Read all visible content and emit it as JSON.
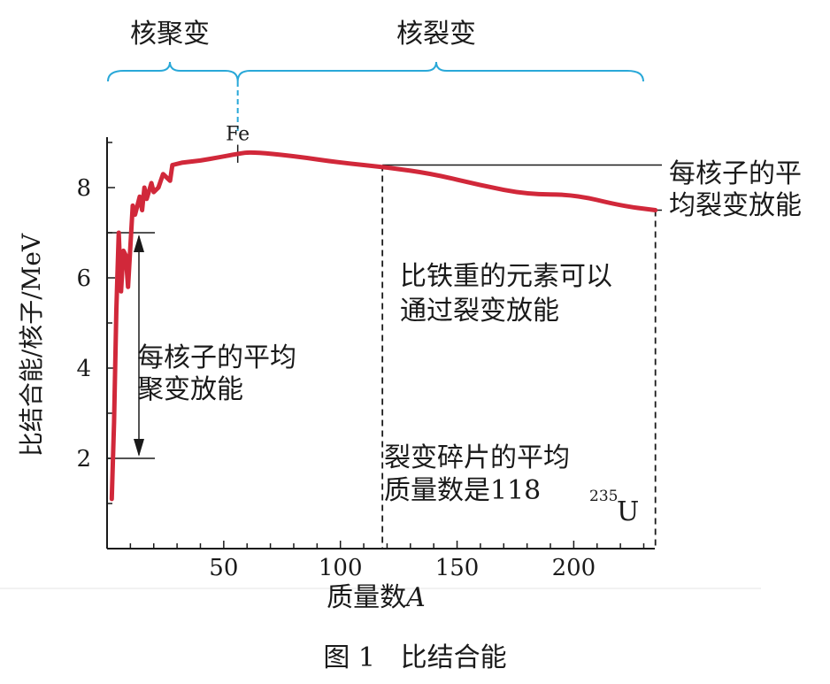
{
  "regions": {
    "fusion_label": "核聚变",
    "fission_label": "核裂变",
    "fe_label": "Fe"
  },
  "annotations": {
    "fission_yield_line1": "每核子的平",
    "fission_yield_line2": "均裂变放能",
    "heavier_than_iron_line1": "比铁重的元素可以",
    "heavier_than_iron_line2": "通过裂变放能",
    "fusion_yield_line1": "每核子的平均",
    "fusion_yield_line2": "聚变放能",
    "fragment_mass_line1": "裂变碎片的平均",
    "fragment_mass_line2": "质量数是118",
    "u_superscript": "235",
    "u_symbol": "U"
  },
  "caption": "图 1   比结合能",
  "colors": {
    "curve": "#d1283a",
    "bracket": "#29a8d8",
    "axis": "#1a1a1a"
  },
  "chart_data": {
    "type": "line",
    "title": "",
    "xlabel_text": "质量数",
    "xlabel_var": "A",
    "ylabel": "比结合能/核子/MeV",
    "xlim": [
      0,
      238
    ],
    "ylim": [
      0,
      9.2
    ],
    "xticks": [
      50,
      100,
      150,
      200
    ],
    "yticks": [
      2,
      4,
      6,
      8
    ],
    "x": [
      2,
      3,
      4,
      5,
      6,
      7,
      8,
      9,
      11,
      12,
      14,
      15,
      16,
      17,
      19,
      20,
      22,
      24,
      27,
      28,
      32,
      40,
      48,
      56,
      62,
      80,
      100,
      120,
      140,
      160,
      180,
      200,
      220,
      235
    ],
    "y": [
      1.1,
      2.8,
      5.3,
      7.0,
      5.7,
      6.6,
      6.5,
      5.8,
      7.6,
      7.4,
      7.8,
      7.5,
      8.0,
      7.75,
      8.1,
      7.9,
      8.0,
      8.3,
      8.15,
      8.5,
      8.55,
      8.6,
      8.67,
      8.75,
      8.79,
      8.7,
      8.55,
      8.45,
      8.3,
      8.05,
      7.85,
      7.85,
      7.6,
      7.5
    ],
    "reference_lines": {
      "fe_x": 56,
      "fragment_mean_x": 118,
      "uranium_x": 235,
      "fission_level_y": 8.5,
      "uranium_level_y": 7.5,
      "fusion_arrow_top_y": 7.0,
      "fusion_arrow_bottom_y": 2.0
    }
  }
}
